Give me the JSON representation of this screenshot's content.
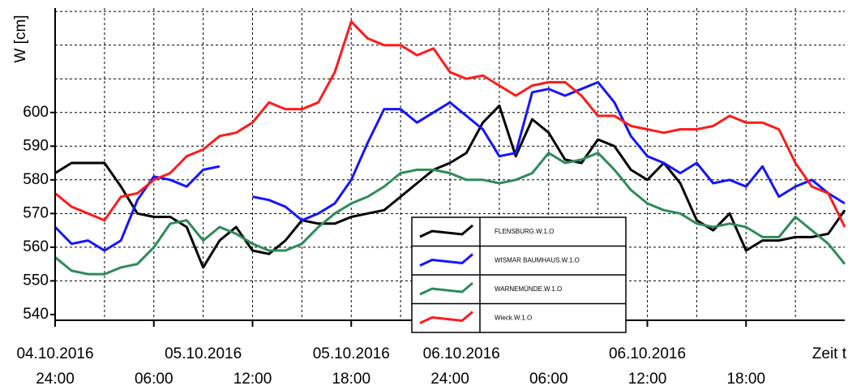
{
  "chart_data": {
    "type": "line",
    "y_label": "W [cm]",
    "x_label": "Zeit t",
    "x": [
      0,
      1,
      2,
      3,
      4,
      5,
      6,
      7,
      8,
      9,
      10,
      11,
      12,
      13,
      14,
      15,
      16,
      17,
      18,
      19,
      20,
      21,
      22,
      23,
      24,
      25,
      26,
      27,
      28,
      29,
      30,
      31,
      32,
      33,
      34,
      35,
      36,
      37,
      38,
      39,
      40,
      41,
      42,
      43,
      44,
      45,
      46,
      47,
      48
    ],
    "xlim": [
      0,
      48
    ],
    "xticks": [
      {
        "value": 0,
        "label": "24:00"
      },
      {
        "value": 6,
        "label": "06:00"
      },
      {
        "value": 12,
        "label": "12:00"
      },
      {
        "value": 18,
        "label": "18:00"
      },
      {
        "value": 24,
        "label": "24:00"
      },
      {
        "value": 30,
        "label": "06:00"
      },
      {
        "value": 36,
        "label": "12:00"
      },
      {
        "value": 42,
        "label": "18:00"
      }
    ],
    "date_labels": [
      {
        "value": 0,
        "label": "04.10.2016"
      },
      {
        "value": 9,
        "label": "05.10.2016"
      },
      {
        "value": 18,
        "label": "05.10.2016"
      },
      {
        "value": 24.7,
        "label": "06.10.2016"
      },
      {
        "value": 36,
        "label": "06.10.2016"
      }
    ],
    "xgrid": [
      3,
      6,
      9,
      12,
      15,
      18,
      21,
      24,
      27,
      30,
      33,
      36,
      39,
      42,
      45
    ],
    "ylim": [
      538.3,
      631
    ],
    "yticks": [
      540,
      550,
      560,
      570,
      580,
      590,
      600
    ],
    "ygrid": [
      550,
      560,
      570,
      580,
      590,
      600,
      610,
      620,
      630
    ],
    "grid": true,
    "legend": "bottom-center",
    "series": [
      {
        "name": "FLENSBURG.W.1.O",
        "color": "#000000",
        "values": [
          582,
          585,
          585,
          585,
          578,
          570,
          569,
          569,
          566,
          554,
          562,
          566,
          559,
          558,
          562,
          568,
          567,
          567,
          569,
          570,
          571,
          575,
          579,
          583,
          585,
          588,
          597,
          602,
          587,
          598,
          594,
          586,
          585,
          592,
          590,
          583,
          580,
          585,
          579,
          568,
          565,
          570,
          559,
          562,
          562,
          563,
          563,
          564,
          571
        ]
      },
      {
        "name": "WISMAR BAUMHAUS.W.1.O",
        "color": "#1414ff",
        "values": [
          566,
          561,
          562,
          559,
          562,
          574,
          581,
          580,
          578,
          583,
          584,
          null,
          575,
          574,
          572,
          568,
          570,
          573,
          580,
          591,
          601,
          601,
          597,
          600,
          603,
          599,
          595,
          587,
          588,
          606,
          607,
          605,
          607,
          609,
          603,
          593,
          587,
          585,
          582,
          585,
          579,
          580,
          578,
          584,
          575,
          578,
          580,
          576,
          573
        ]
      },
      {
        "name": "WARNEMÜNDE.W.1.O",
        "color": "#2e8b57",
        "values": [
          557,
          553,
          552,
          552,
          554,
          555,
          560,
          567,
          568,
          562,
          566,
          564,
          561,
          559,
          559,
          561,
          566,
          570,
          573,
          575,
          578,
          582,
          583,
          583,
          582,
          580,
          580,
          579,
          580,
          582,
          588,
          585,
          586,
          588,
          583,
          577,
          573,
          571,
          570,
          567,
          566,
          567,
          566,
          563,
          563,
          569,
          565,
          561,
          555
        ]
      },
      {
        "name": "Wieck.W.1.O",
        "color": "#ff1a1a",
        "values": [
          576,
          572,
          570,
          568,
          575,
          576,
          580,
          582,
          587,
          589,
          593,
          594,
          597,
          603,
          601,
          601,
          603,
          612,
          627,
          622,
          620,
          620,
          617,
          619,
          612,
          610,
          611,
          608,
          605,
          608,
          609,
          609,
          605,
          599,
          599,
          596,
          595,
          594,
          595,
          595,
          596,
          599,
          597,
          597,
          595,
          585,
          578,
          576,
          566
        ]
      }
    ]
  }
}
